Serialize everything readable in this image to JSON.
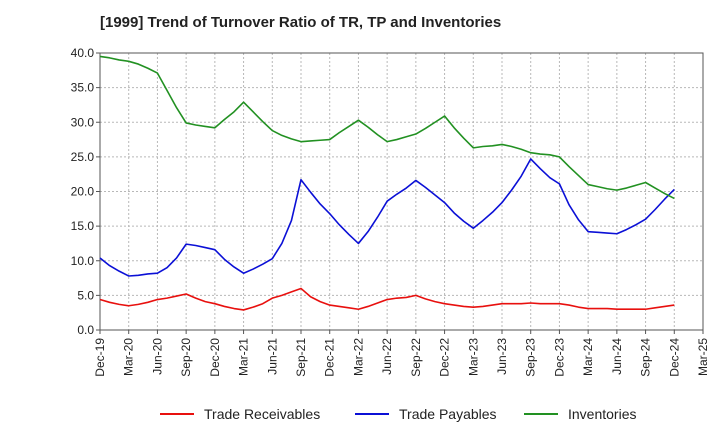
{
  "chart_data": {
    "type": "line",
    "title": "[1999]  Trend of Turnover Ratio of TR, TP and Inventories",
    "xlabel": "",
    "ylabel": "",
    "ylim": [
      0,
      40
    ],
    "yticks": [
      "0.0",
      "5.0",
      "10.0",
      "15.0",
      "20.0",
      "25.0",
      "30.0",
      "35.0",
      "40.0"
    ],
    "x_ticks": [
      "Dec-19",
      "Mar-20",
      "Jun-20",
      "Sep-20",
      "Dec-20",
      "Mar-21",
      "Jun-21",
      "Sep-21",
      "Dec-21",
      "Mar-22",
      "Jun-22",
      "Sep-22",
      "Dec-22",
      "Mar-23",
      "Jun-23",
      "Sep-23",
      "Dec-23",
      "Mar-24",
      "Jun-24",
      "Sep-24",
      "Dec-24",
      "Mar-25"
    ],
    "x_months": [
      "2019-12",
      "2020-01",
      "2020-02",
      "2020-03",
      "2020-04",
      "2020-05",
      "2020-06",
      "2020-07",
      "2020-08",
      "2020-09",
      "2020-10",
      "2020-11",
      "2020-12",
      "2021-01",
      "2021-02",
      "2021-03",
      "2021-04",
      "2021-05",
      "2021-06",
      "2021-07",
      "2021-08",
      "2021-09",
      "2021-10",
      "2021-11",
      "2021-12",
      "2022-01",
      "2022-02",
      "2022-03",
      "2022-04",
      "2022-05",
      "2022-06",
      "2022-07",
      "2022-08",
      "2022-09",
      "2022-10",
      "2022-11",
      "2022-12",
      "2023-01",
      "2023-02",
      "2023-03",
      "2023-04",
      "2023-05",
      "2023-06",
      "2023-07",
      "2023-08",
      "2023-09",
      "2023-10",
      "2023-11",
      "2023-12",
      "2024-01",
      "2024-02",
      "2024-03",
      "2024-04",
      "2024-05",
      "2024-06",
      "2024-07",
      "2024-08",
      "2024-09",
      "2024-10",
      "2024-11",
      "2024-12"
    ],
    "grid": true,
    "legend_position": "bottom",
    "series": [
      {
        "name": "Trade Receivables",
        "color": "#e8100e",
        "values": [
          4.4,
          4.0,
          3.7,
          3.5,
          3.7,
          4.0,
          4.4,
          4.6,
          4.9,
          5.2,
          4.6,
          4.1,
          3.8,
          3.4,
          3.1,
          2.9,
          3.3,
          3.8,
          4.6,
          5.0,
          5.5,
          6.0,
          4.8,
          4.1,
          3.6,
          3.4,
          3.2,
          3.0,
          3.4,
          3.9,
          4.4,
          4.6,
          4.7,
          5.0,
          4.5,
          4.1,
          3.8,
          3.6,
          3.4,
          3.3,
          3.4,
          3.6,
          3.8,
          3.8,
          3.8,
          3.9,
          3.8,
          3.8,
          3.8,
          3.6,
          3.3,
          3.1,
          3.1,
          3.1,
          3.0,
          3.0,
          3.0,
          3.0,
          3.2,
          3.4,
          3.6
        ]
      },
      {
        "name": "Trade Payables",
        "color": "#0b10d6",
        "values": [
          10.4,
          9.3,
          8.5,
          7.8,
          7.9,
          8.1,
          8.2,
          9.0,
          10.4,
          12.4,
          12.2,
          11.9,
          11.6,
          10.2,
          9.1,
          8.2,
          8.8,
          9.5,
          10.3,
          12.5,
          15.8,
          21.7,
          19.9,
          18.2,
          16.8,
          15.2,
          13.8,
          12.5,
          14.2,
          16.3,
          18.6,
          19.6,
          20.5,
          21.6,
          20.6,
          19.5,
          18.4,
          16.9,
          15.7,
          14.7,
          15.8,
          17.0,
          18.4,
          20.2,
          22.2,
          24.7,
          23.3,
          22.0,
          21.1,
          18.1,
          15.9,
          14.2,
          14.1,
          14.0,
          13.9,
          14.5,
          15.2,
          16.0,
          17.4,
          18.9,
          20.3
        ]
      },
      {
        "name": "Inventories",
        "color": "#229122",
        "values": [
          39.5,
          39.3,
          39.0,
          38.8,
          38.4,
          37.8,
          37.1,
          34.6,
          32.1,
          29.9,
          29.6,
          29.4,
          29.2,
          30.4,
          31.5,
          32.9,
          31.5,
          30.1,
          28.8,
          28.1,
          27.6,
          27.2,
          27.3,
          27.4,
          27.5,
          28.5,
          29.4,
          30.3,
          29.3,
          28.2,
          27.2,
          27.5,
          27.9,
          28.3,
          29.1,
          30.0,
          30.9,
          29.2,
          27.7,
          26.3,
          26.5,
          26.6,
          26.8,
          26.5,
          26.1,
          25.6,
          25.4,
          25.3,
          25.0,
          23.6,
          22.3,
          21.0,
          20.7,
          20.4,
          20.2,
          20.5,
          20.9,
          21.3,
          20.5,
          19.7,
          19.0
        ]
      }
    ]
  }
}
